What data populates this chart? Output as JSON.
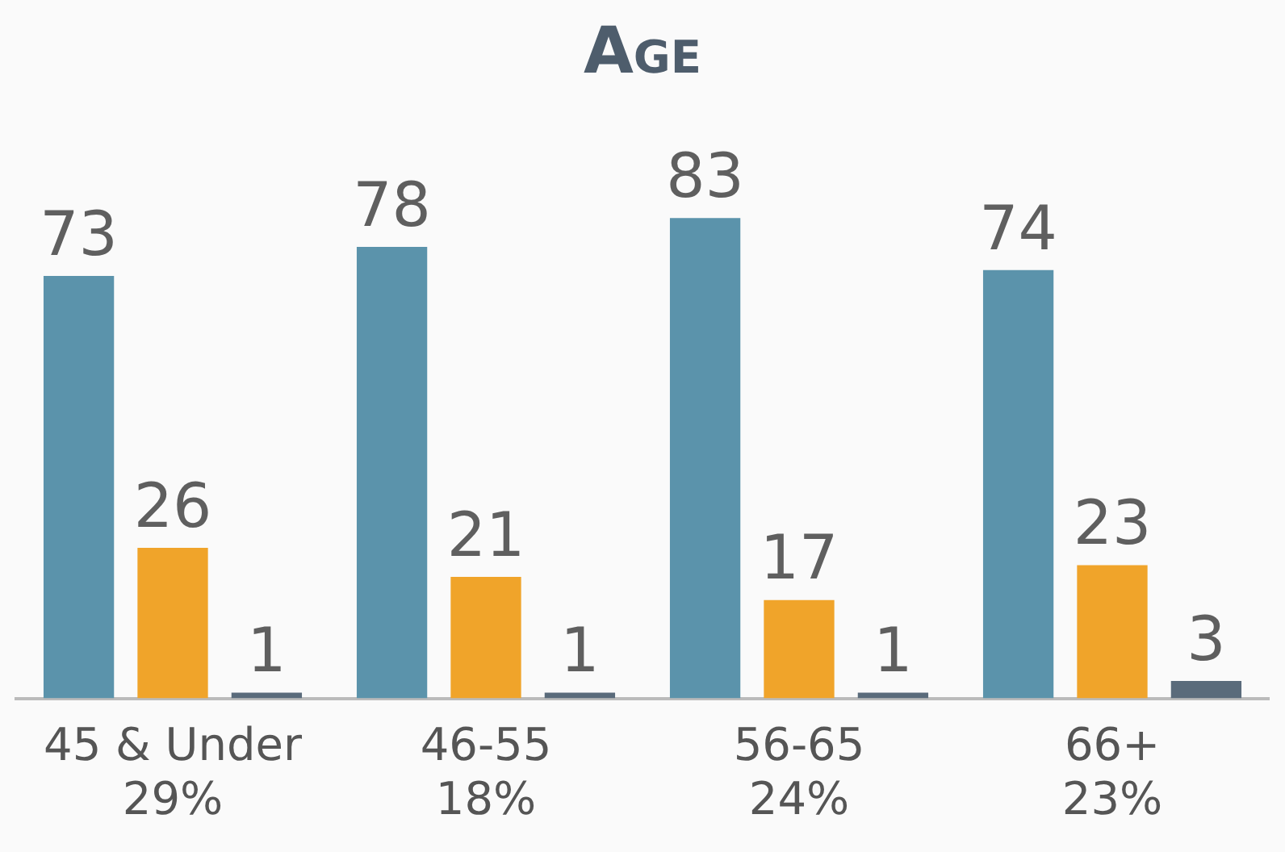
{
  "chart_data": {
    "type": "bar",
    "title": "Age",
    "categories": [
      "45 & Under\n29%",
      "46-55\n18%",
      "56-65\n24%",
      "66+\n23%"
    ],
    "series": [
      {
        "color": "#5b93ab",
        "values": [
          73,
          78,
          83,
          74
        ]
      },
      {
        "color": "#f0a42a",
        "values": [
          26,
          21,
          17,
          23
        ]
      },
      {
        "color": "#5a6b7b",
        "values": [
          1,
          1,
          1,
          3
        ]
      }
    ],
    "data_labels": true,
    "grid": false,
    "legend": false
  }
}
